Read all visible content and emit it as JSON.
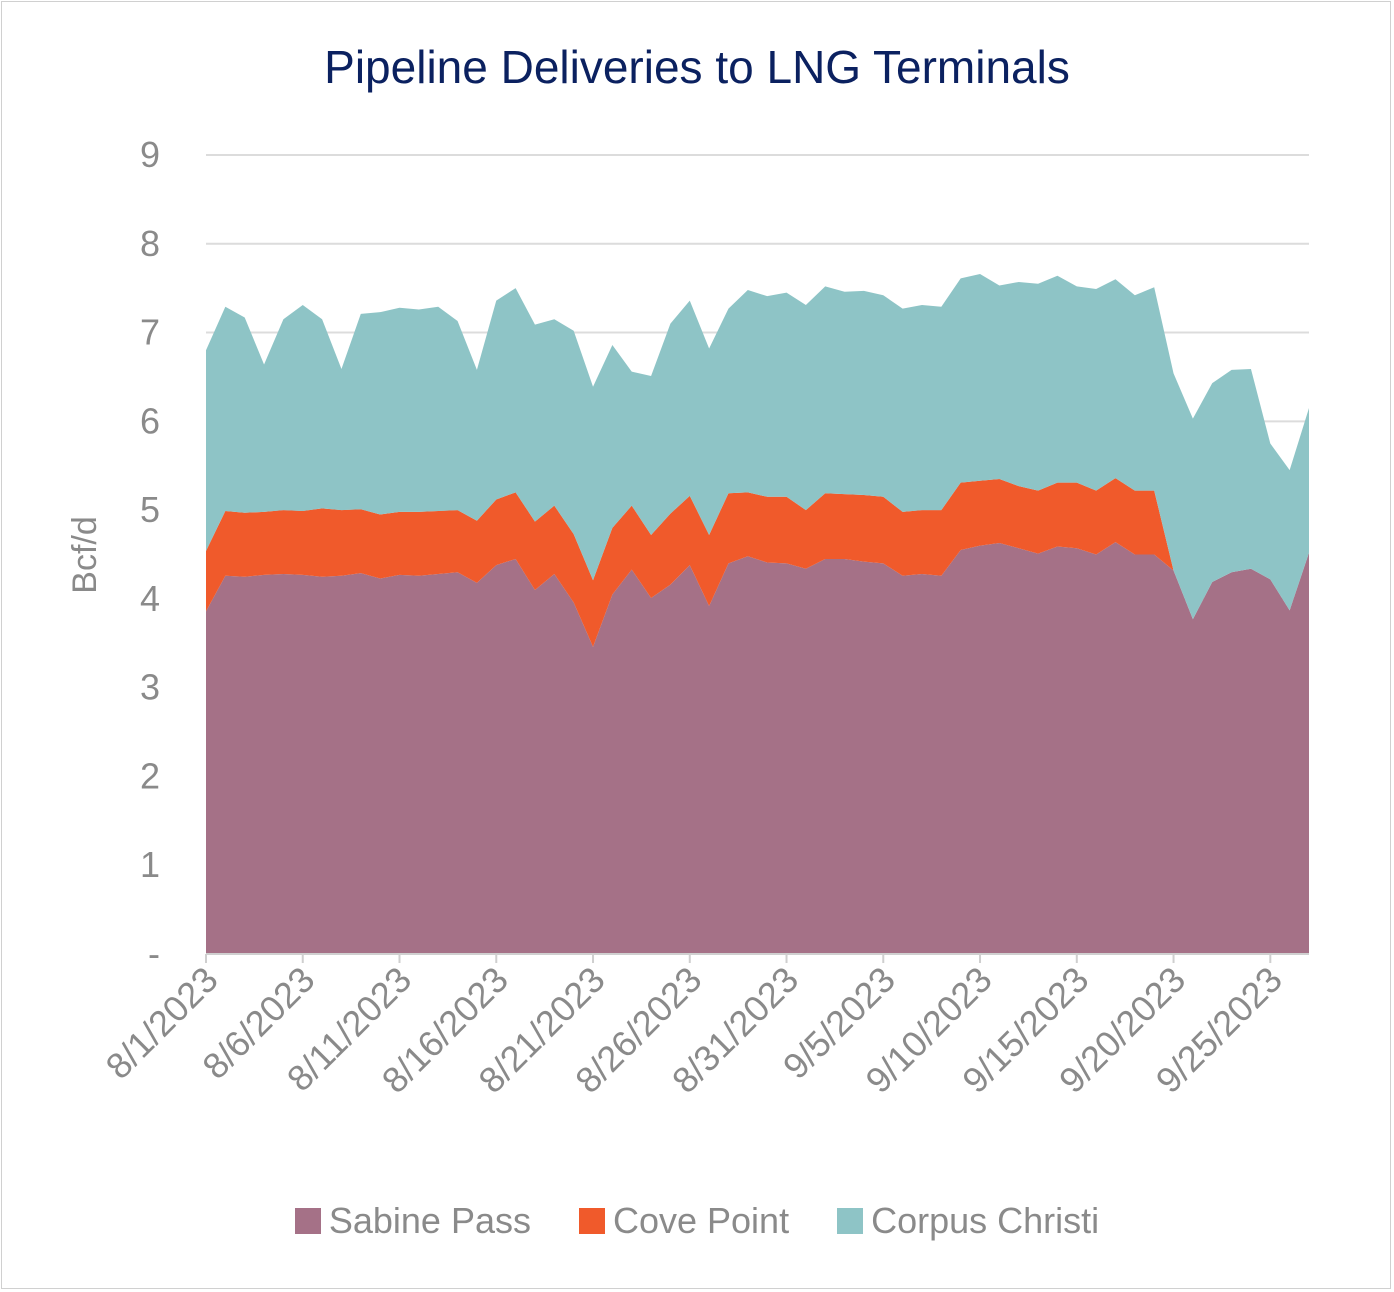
{
  "chart_data": {
    "type": "area",
    "stacked": true,
    "title": "Pipeline Deliveries to LNG Terminals",
    "ylabel": "Bcf/d",
    "xlabel": "",
    "ylim": [
      0,
      9
    ],
    "yticks": [
      "-",
      "1",
      "2",
      "3",
      "4",
      "5",
      "6",
      "7",
      "8",
      "9"
    ],
    "grid": true,
    "legend_position": "bottom",
    "x": [
      "8/1/2023",
      "8/2/2023",
      "8/3/2023",
      "8/4/2023",
      "8/5/2023",
      "8/6/2023",
      "8/7/2023",
      "8/8/2023",
      "8/9/2023",
      "8/10/2023",
      "8/11/2023",
      "8/12/2023",
      "8/13/2023",
      "8/14/2023",
      "8/15/2023",
      "8/16/2023",
      "8/17/2023",
      "8/18/2023",
      "8/19/2023",
      "8/20/2023",
      "8/21/2023",
      "8/22/2023",
      "8/23/2023",
      "8/24/2023",
      "8/25/2023",
      "8/26/2023",
      "8/27/2023",
      "8/28/2023",
      "8/29/2023",
      "8/30/2023",
      "8/31/2023",
      "9/1/2023",
      "9/2/2023",
      "9/3/2023",
      "9/4/2023",
      "9/5/2023",
      "9/6/2023",
      "9/7/2023",
      "9/8/2023",
      "9/9/2023",
      "9/10/2023",
      "9/11/2023",
      "9/12/2023",
      "9/13/2023",
      "9/14/2023",
      "9/15/2023",
      "9/16/2023",
      "9/17/2023",
      "9/18/2023",
      "9/19/2023",
      "9/20/2023",
      "9/21/2023",
      "9/22/2023",
      "9/23/2023",
      "9/24/2023",
      "9/25/2023",
      "9/26/2023",
      "9/27/2023"
    ],
    "xtick_labels": [
      "8/1/2023",
      "8/6/2023",
      "8/11/2023",
      "8/16/2023",
      "8/21/2023",
      "8/26/2023",
      "8/31/2023",
      "9/5/2023",
      "9/10/2023",
      "9/15/2023",
      "9/20/2023",
      "9/25/2023"
    ],
    "series": [
      {
        "name": "Sabine Pass",
        "color": "#a57187",
        "values": [
          3.86,
          4.26,
          4.25,
          4.27,
          4.28,
          4.27,
          4.25,
          4.26,
          4.29,
          4.23,
          4.27,
          4.26,
          4.28,
          4.3,
          4.18,
          4.38,
          4.45,
          4.1,
          4.28,
          3.96,
          3.46,
          4.05,
          4.33,
          4.01,
          4.16,
          4.38,
          3.92,
          4.4,
          4.48,
          4.41,
          4.4,
          4.34,
          4.45,
          4.45,
          4.42,
          4.4,
          4.26,
          4.28,
          4.26,
          4.55,
          4.6,
          4.63,
          4.57,
          4.51,
          4.59,
          4.57,
          4.5,
          4.64,
          4.5,
          4.5,
          4.32,
          3.77,
          4.19,
          4.3,
          4.34,
          4.22,
          3.87,
          4.52
        ]
      },
      {
        "name": "Cove Point",
        "color": "#f05a2b",
        "values": [
          0.68,
          0.73,
          0.72,
          0.71,
          0.72,
          0.72,
          0.77,
          0.74,
          0.72,
          0.72,
          0.71,
          0.72,
          0.71,
          0.7,
          0.7,
          0.74,
          0.75,
          0.77,
          0.77,
          0.77,
          0.75,
          0.75,
          0.72,
          0.71,
          0.8,
          0.78,
          0.8,
          0.79,
          0.72,
          0.74,
          0.75,
          0.66,
          0.74,
          0.73,
          0.75,
          0.75,
          0.72,
          0.72,
          0.74,
          0.76,
          0.73,
          0.72,
          0.7,
          0.71,
          0.72,
          0.74,
          0.72,
          0.72,
          0.72,
          0.72,
          0.0,
          0.0,
          0.0,
          0.0,
          0.0,
          0.0,
          0.0,
          0.0
        ]
      },
      {
        "name": "Corpus Christi",
        "color": "#8ec4c6",
        "values": [
          2.26,
          2.3,
          2.2,
          1.66,
          2.15,
          2.32,
          2.13,
          1.59,
          2.2,
          2.28,
          2.3,
          2.28,
          2.3,
          2.13,
          1.7,
          2.24,
          2.3,
          2.22,
          2.1,
          2.29,
          2.18,
          2.06,
          1.51,
          1.79,
          2.14,
          2.2,
          2.1,
          2.08,
          2.28,
          2.26,
          2.3,
          2.31,
          2.33,
          2.28,
          2.3,
          2.27,
          2.29,
          2.31,
          2.29,
          2.3,
          2.33,
          2.18,
          2.3,
          2.33,
          2.33,
          2.21,
          2.27,
          2.24,
          2.2,
          2.29,
          2.22,
          2.26,
          2.24,
          2.28,
          2.25,
          1.53,
          1.58,
          1.63
        ]
      }
    ]
  }
}
